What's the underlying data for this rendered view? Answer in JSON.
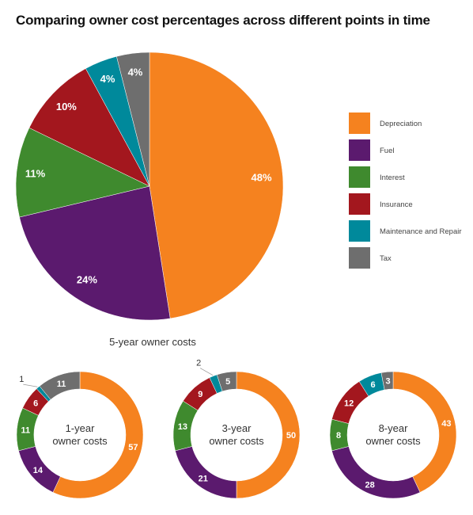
{
  "title": "Comparing owner cost percentages across different points in time",
  "colors": {
    "Depreciation": "#F5821F",
    "Fuel": "#5B1A6E",
    "Interest": "#3F8A2E",
    "Insurance": "#A3171E",
    "Maintenance and Repair": "#00899B",
    "Tax": "#6E6E6E"
  },
  "chart_data": [
    {
      "type": "pie",
      "caption": "5-year owner costs",
      "labels": [
        "Depreciation",
        "Fuel",
        "Interest",
        "Insurance",
        "Maintenance and Repair",
        "Tax"
      ],
      "values": [
        48,
        24,
        11,
        10,
        4,
        4
      ],
      "value_labels": [
        "48%",
        "24%",
        "11%",
        "10%",
        "4%",
        "4%"
      ],
      "legend_position": "right"
    },
    {
      "type": "donut",
      "caption_lines": [
        "1-year",
        "owner costs"
      ],
      "labels": [
        "Depreciation",
        "Fuel",
        "Interest",
        "Insurance",
        "Maintenance and Repair",
        "Tax"
      ],
      "values": [
        57,
        14,
        11,
        6,
        1,
        11
      ],
      "value_labels": [
        "57",
        "14",
        "11",
        "6",
        "1",
        "11"
      ]
    },
    {
      "type": "donut",
      "caption_lines": [
        "3-year",
        "owner costs"
      ],
      "labels": [
        "Depreciation",
        "Fuel",
        "Interest",
        "Insurance",
        "Maintenance and Repair",
        "Tax"
      ],
      "values": [
        50,
        21,
        13,
        9,
        2,
        5
      ],
      "value_labels": [
        "50",
        "21",
        "13",
        "9",
        "2",
        "5"
      ]
    },
    {
      "type": "donut",
      "caption_lines": [
        "8-year",
        "owner costs"
      ],
      "labels": [
        "Depreciation",
        "Fuel",
        "Interest",
        "Insurance",
        "Maintenance and Repair",
        "Tax"
      ],
      "values": [
        43,
        28,
        8,
        12,
        6,
        3
      ],
      "value_labels": [
        "43",
        "28",
        "8",
        "12",
        "6",
        "3"
      ]
    }
  ],
  "legend": {
    "items": [
      "Depreciation",
      "Fuel",
      "Interest",
      "Insurance",
      "Maintenance and Repair",
      "Tax"
    ]
  }
}
